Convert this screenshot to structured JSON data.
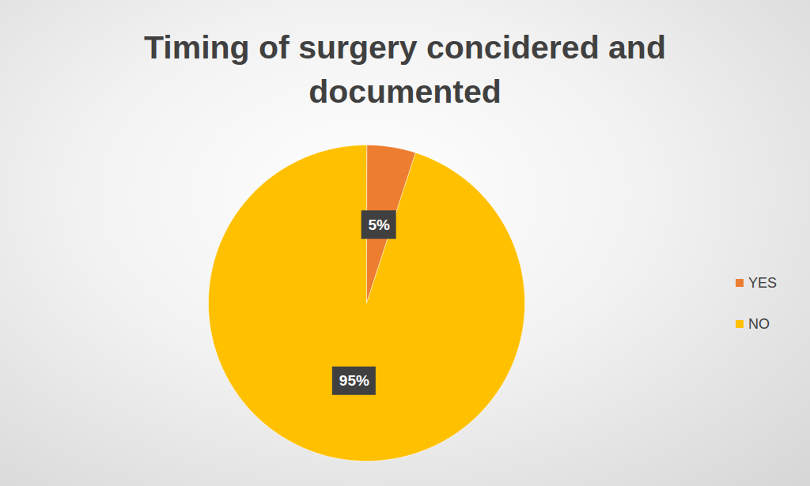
{
  "chart_data": {
    "type": "pie",
    "title": "Timing of surgery concidered and documented",
    "categories": [
      "YES",
      "NO"
    ],
    "values": [
      5,
      95
    ],
    "value_labels": [
      "5%",
      "95%"
    ],
    "colors": [
      "#ED7D31",
      "#FFC000"
    ],
    "data_labels": true,
    "legend": "right"
  }
}
